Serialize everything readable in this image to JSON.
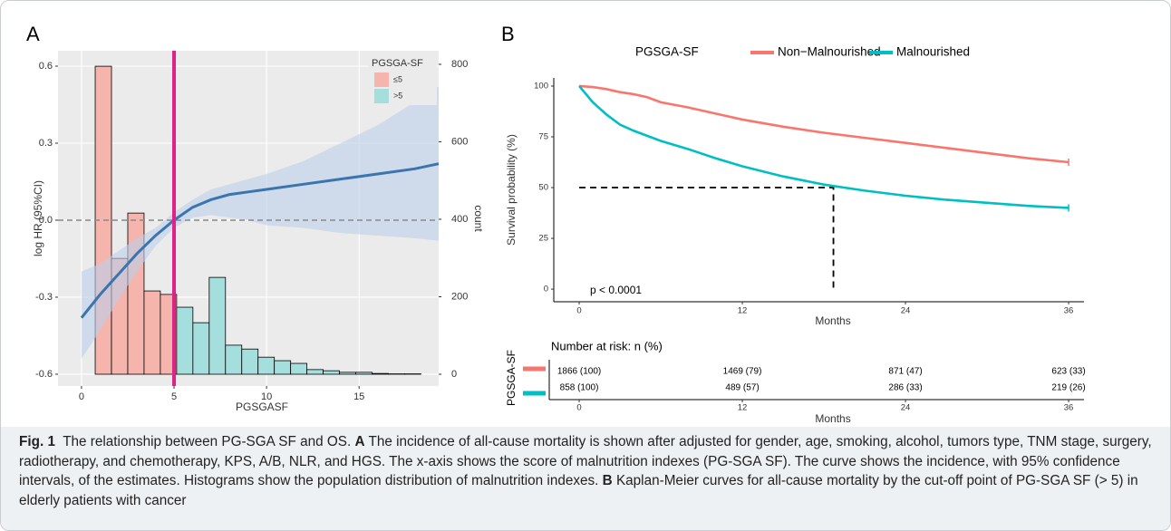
{
  "chart_data": [
    {
      "type": "histogram",
      "panel_label": "A",
      "xlabel": "PGSGASF",
      "ylabel": "log HR (95%CI)",
      "y2label": "count",
      "xlim": [
        -1.27,
        19.3
      ],
      "xticks": [
        0,
        5,
        10,
        15
      ],
      "ylim": [
        -0.646,
        0.66
      ],
      "yticks": [
        -0.6,
        -0.3,
        {
          "value": 0,
          "label": "0.0"
        },
        0.3,
        0.6
      ],
      "y2lim": [
        -30.4,
        835
      ],
      "y2ticks": [
        0,
        200,
        400,
        600,
        800
      ],
      "grid": true,
      "legend": "top-right",
      "legend_title": "PGSGA-SF",
      "series": [
        {
          "name": "≤5",
          "color": "#f5b5ad",
          "axis": "y2",
          "bins": [
            0.74,
            1.62,
            2.5,
            3.38,
            4.26,
            5.14
          ],
          "values": [
            795,
            299,
            416,
            215,
            206
          ]
        },
        {
          "name": ">5",
          "color": "#a5dfdd",
          "axis": "y2",
          "bins": [
            5.14,
            6.02,
            6.9,
            7.78,
            8.66,
            9.54,
            10.42,
            11.3,
            12.18,
            13.06,
            13.94,
            14.82,
            15.7,
            16.58,
            17.46,
            18.34
          ],
          "values": [
            173,
            133,
            250,
            75,
            65,
            44,
            35,
            28,
            12,
            9,
            5,
            5,
            2,
            1,
            1
          ]
        }
      ],
      "curve": {
        "color": "#3b75af",
        "band_color": "#bccfe9",
        "x": [
          0,
          1,
          2,
          3,
          4,
          5,
          6,
          7,
          8,
          9,
          10,
          12,
          14,
          16,
          18,
          19.3
        ],
        "values": [
          -0.38,
          -0.29,
          -0.21,
          -0.13,
          -0.06,
          0,
          0.05,
          0.08,
          0.1,
          0.11,
          0.12,
          0.14,
          0.16,
          0.18,
          0.2,
          0.22
        ],
        "lower": [
          -0.54,
          -0.43,
          -0.31,
          -0.2,
          -0.1,
          -0.03,
          0.01,
          0.02,
          0.01,
          0,
          -0.02,
          -0.03,
          -0.05,
          -0.06,
          -0.07,
          -0.08
        ],
        "upper": [
          -0.2,
          -0.17,
          -0.12,
          -0.07,
          -0.03,
          0.03,
          0.08,
          0.12,
          0.14,
          0.16,
          0.18,
          0.23,
          0.3,
          0.37,
          0.46,
          0.52
        ]
      },
      "reference_line": 0,
      "cutoff_line": {
        "x": 5,
        "color": "#e0218a"
      }
    },
    {
      "type": "line",
      "panel_label": "B",
      "legend_title": "PGSGA-SF",
      "legend": "top",
      "xlabel": "Months",
      "ylabel": "Survival probability (%)",
      "xlim": [
        -1.87,
        37.13
      ],
      "xticks": [
        0,
        12,
        24,
        36
      ],
      "ylim": [
        -6.2,
        104
      ],
      "yticks": [
        0,
        25,
        50,
        75,
        100
      ],
      "annotation": "p < 0.0001",
      "median_line": {
        "x": 18.7,
        "y": 50
      },
      "x": [
        0,
        1,
        2,
        3,
        4,
        5,
        6,
        8,
        10,
        12,
        15,
        18,
        21,
        24,
        27,
        30,
        33,
        36
      ],
      "series": [
        {
          "name": "Non−Malnourished",
          "color": "#F8766D",
          "values": [
            100,
            99.5,
            98.5,
            97,
            96,
            94.5,
            92,
            89.5,
            86.5,
            83.5,
            80,
            77,
            74.5,
            72,
            69.5,
            67,
            64.5,
            62.5
          ]
        },
        {
          "name": "Malnourished",
          "color": "#00BFC4",
          "values": [
            100,
            92,
            86,
            81,
            78,
            75.5,
            73,
            69,
            64.5,
            60.5,
            55.5,
            51.5,
            48.5,
            46,
            44,
            42.5,
            41,
            40
          ]
        }
      ],
      "risk_table": {
        "title": "Number at risk: n (%)",
        "ylabel": "PGSGA-SF",
        "xlabel": "Months",
        "xticks": [
          0,
          12,
          24,
          36
        ],
        "rows": [
          [
            "1866 (100)",
            "1469 (79)",
            "871 (47)",
            "623 (33)"
          ],
          [
            "858 (100)",
            "489 (57)",
            "286 (33)",
            "219 (26)"
          ]
        ]
      }
    }
  ],
  "caption": {
    "label": "Fig. 1",
    "title": "The relationship between PG-SGA SF and OS.",
    "parts": [
      {
        "label": "A",
        "text": "The incidence of all-cause mortality is shown after adjusted for gender, age, smoking, alcohol, tumors type, TNM stage, surgery, radiotherapy, and chemotherapy, KPS, A/B, NLR, and HGS. The x-axis shows the score of malnutrition indexes (PG-SGA SF). The curve shows the incidence, with 95% confidence intervals, of the estimates. Histograms show the population distribution of malnutrition indexes."
      },
      {
        "label": "B",
        "text": "Kaplan-Meier curves for all-cause mortality by the cut-off point of PG-SGA SF (> 5) in elderly patients with cancer"
      }
    ]
  }
}
